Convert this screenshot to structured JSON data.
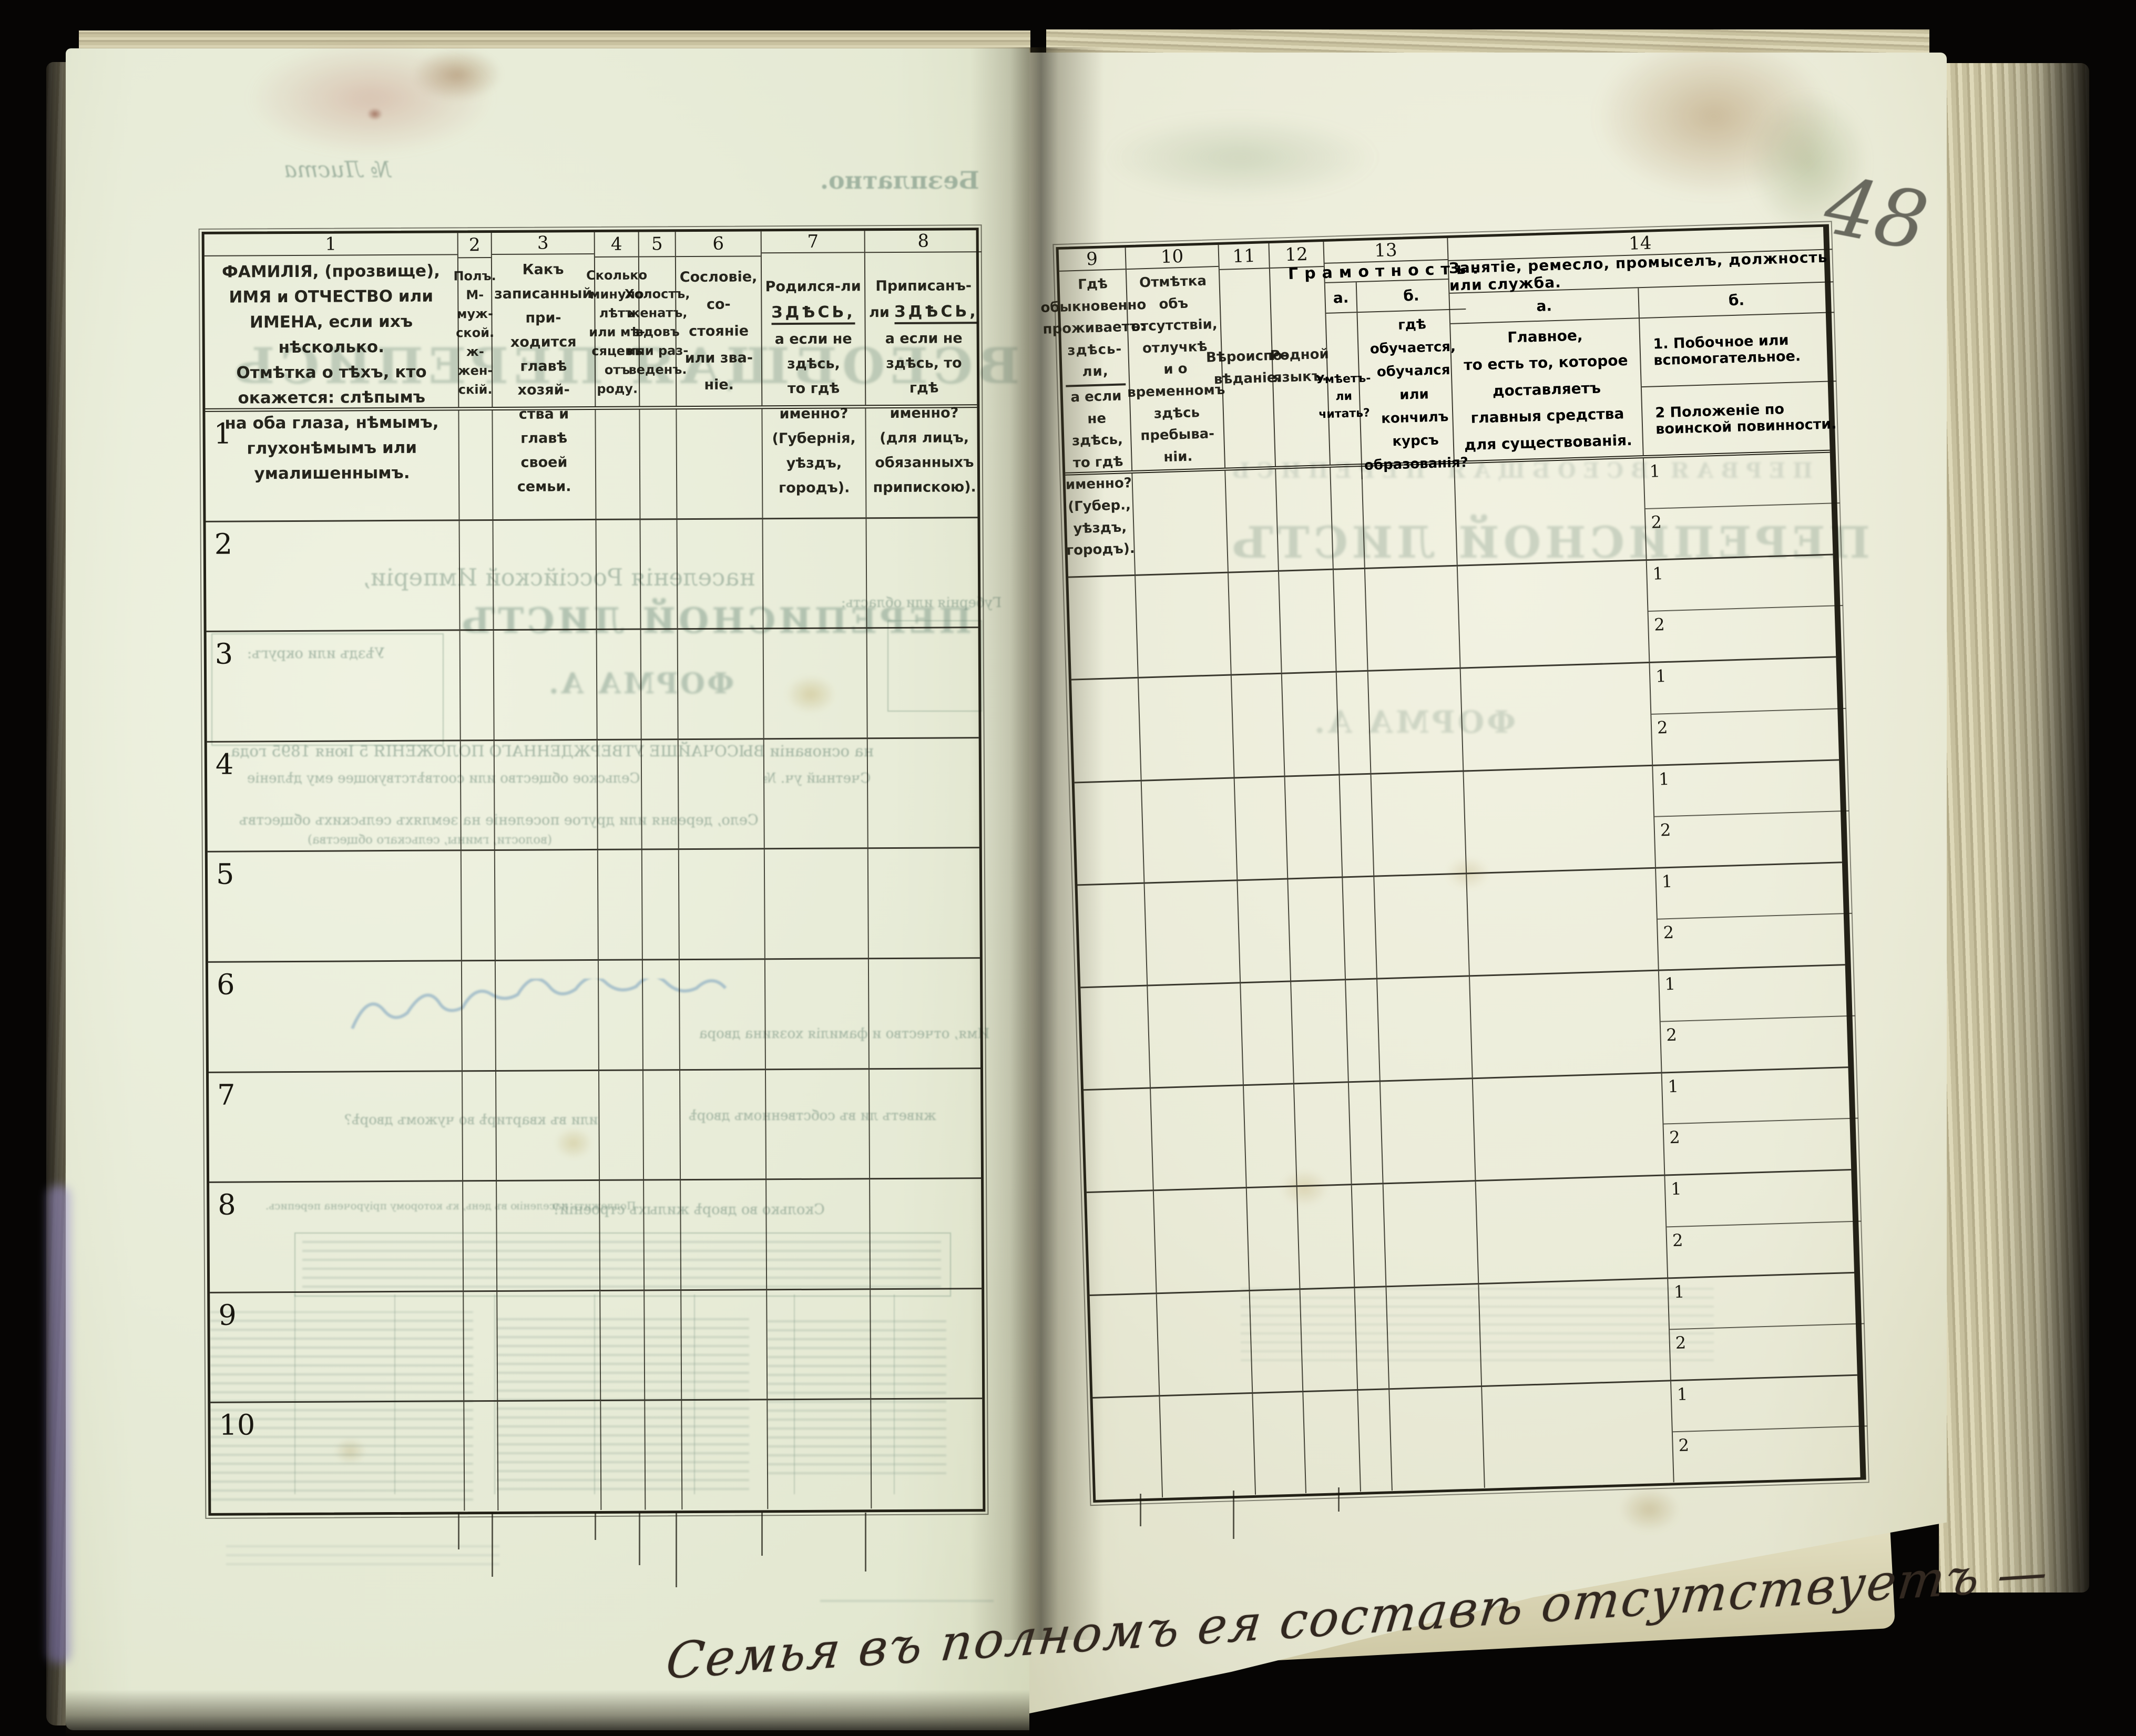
{
  "scan": {
    "pencil_page_number": "48",
    "handwritten_note": "Семья въ полномъ ея составѣ отсутствуетъ —"
  },
  "table": {
    "row_labels": [
      "1",
      "2",
      "3",
      "4",
      "5",
      "6",
      "7",
      "8",
      "9",
      "10"
    ],
    "subrow_labels": [
      "1",
      "2"
    ],
    "columns": {
      "c1": {
        "num": "1",
        "text": "ФАМИЛІЯ, (прозвище), ИМЯ и ОТЧЕСТВО или\nИМЕНА, если ихъ нѣсколько.\nОтмѣтка о тѣхъ, кто окажется: слѣпымъ\nна оба глаза, нѣмымъ, глухонѣмымъ или\nумалишеннымъ."
      },
      "c2": {
        "num": "2",
        "text": "Полъ.\nМ-муж-\nской.\nж-жен-\nскій."
      },
      "c3": {
        "num": "3",
        "text": "Какъ записанный при-\nходится главѣ хозяй-\nства и главѣ своей\nсемьи."
      },
      "c4": {
        "num": "4",
        "text": "Сколько\nминуло\nлѣтъ\nили мѣ-\nсяцевъ\nотъ роду."
      },
      "c5": {
        "num": "5",
        "text": "Холостъ,\nженатъ,\nвдовъ\nили раз-\nведенъ."
      },
      "c6": {
        "num": "6",
        "text": "Сословіе, со-\nстояніе или зва-\nніе."
      },
      "c7": {
        "num": "7",
        "pre": "Родился-ли ",
        "emph": "ЗДѢСЬ,",
        "post": "\nа если не здѣсь,\nто гдѣ именно?\n(Губернія, уѣздъ, городъ)."
      },
      "c8": {
        "num": "8",
        "pre": "Приписанъ-ли ",
        "emph": "ЗДѢСЬ,",
        "post": "\nа если не здѣсь, то гдѣ\nименно?\n(для лицъ, обязанныхъ\nприпискою)."
      },
      "c9": {
        "num": "9",
        "pre": "Гдѣ обыкновенно\nпроживаетъ:\n",
        "emph": "здѣсь-ли,",
        "post": " а если\nне здѣсь, то гдѣ\nименно?\n(Губер., уѣздъ, городъ)."
      },
      "c10": {
        "num": "10",
        "text": "Отмѣтка объ\nотсутствіи, отлучкѣ\nи о временномъ\nздѣсь пребыва-\nніи."
      },
      "c11": {
        "num": "11",
        "text": "Вѣроиспо-\nвѣданіе."
      },
      "c12": {
        "num": "12",
        "text": "Родной\nязыкъ."
      },
      "c13": {
        "num": "13",
        "title": "Грамотность.",
        "a_label": "a.",
        "b_label": "б.",
        "a_text": "Умѣетъ-\nли\nчитать?",
        "b_text": "гдѣ обучается,\nобучался или\nкончилъ курсъ\nобразованія?"
      },
      "c14": {
        "num": "14",
        "title": "Занятіе, ремесло, промыселъ, должность или служба.",
        "a_label": "a.",
        "b_label": "б.",
        "a_text": "Главное,\nто есть то, которое доставляетъ\nглавныя средства для существованія.",
        "b_item1": "1.  Побочное или вспомогательное.",
        "b_item2": "2  Положеніе по воинской повинности."
      }
    }
  },
  "ghosts": {
    "free": "Безплатно.",
    "sheet_no": "№ Листа",
    "census_title": "ВСЕОБЩАЯ ПЕРЕПИСЬ",
    "census_sub": "населенія Россійской Имперіи,",
    "census_law": "на основаніи ВЫСОЧАЙШЕ УТВЕРЖДЕННАГО ПОЛОЖЕНІЯ 5 Іюня 1895 года.",
    "list_title": "ПЕРЕПИСНОЙ ЛИСТЪ",
    "form_a": "ФОРМА А.",
    "uezd": "Уѣздъ или округъ:",
    "gubernia": "Губернія или область:",
    "schet": "Счетный уч. №",
    "selskoe": "Сельское общество или соотвѣтствующее ему дѣленіе",
    "selo": "Село, деревня или другое поселеніе на земляхъ сельскихъ обществъ",
    "selo2": "(волости, гмины, сельскаго общества)",
    "khozyain": "Имя, отчество и фамилія хозяина двора",
    "dvor1": "живетъ ли въ собственномъ дворѣ",
    "dvor2": "или въ квартирѣ во чужомъ дворѣ?",
    "stroenia": "Сколько во дворѣ жилыхъ строеній?",
    "podlezhit": "Подлежитъ населенію въ день, къ которому пріурочена перепись.",
    "r_census": "ПЕРВАЯ ВСЕОБЩАЯ ПЕРЕПИСЬ",
    "r_list": "ПЕРЕПИСНОЙ ЛИСТЪ",
    "r_form": "ФОРМА А."
  }
}
